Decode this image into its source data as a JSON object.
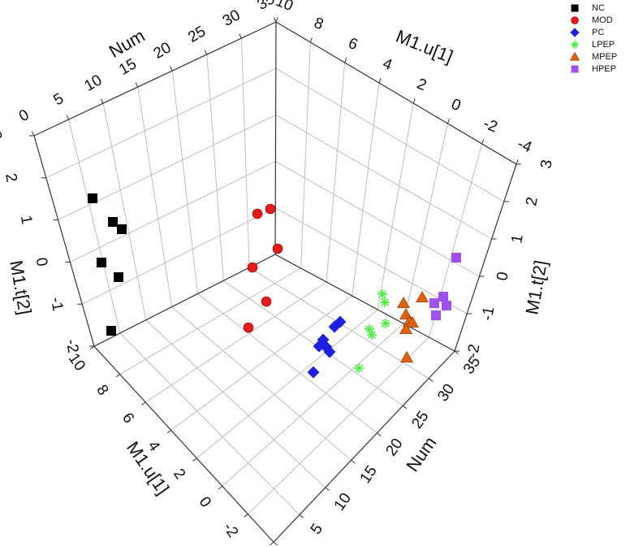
{
  "chart_data": {
    "type": "scatter",
    "view": "3d-box",
    "grid": true,
    "legend_position": "top-right",
    "axes": {
      "num_label": "Num",
      "u1_label": "M1.u[1]",
      "t2_label": "M1.t[2]",
      "num_ticks": [
        "0",
        "5",
        "10",
        "15",
        "20",
        "25",
        "30",
        "35"
      ],
      "u1_ticks": [
        "10",
        "8",
        "6",
        "4",
        "2",
        "0",
        "-2",
        "-4"
      ],
      "t2_ticks": [
        "-2",
        "-1",
        "0",
        "1",
        "2",
        "3"
      ]
    },
    "series": [
      {
        "name": "NC",
        "marker": "square",
        "color": "#000000",
        "points": [
          [
            114,
            244
          ],
          [
            139,
            273
          ],
          [
            150,
            282
          ],
          [
            125,
            323
          ],
          [
            146,
            341
          ],
          [
            137,
            407
          ]
        ]
      },
      {
        "name": "MOD",
        "marker": "circle",
        "color": "#e41a1c",
        "points": [
          [
            317,
            263
          ],
          [
            333,
            257
          ],
          [
            342,
            306
          ],
          [
            311,
            329
          ],
          [
            328,
            371
          ],
          [
            306,
            403
          ]
        ]
      },
      {
        "name": "PC",
        "marker": "diamond",
        "color": "#1f1fe0",
        "points": [
          [
            419,
            396
          ],
          [
            412,
            402
          ],
          [
            398,
            418
          ],
          [
            393,
            426
          ],
          [
            402,
            427
          ],
          [
            406,
            433
          ],
          [
            386,
            458
          ]
        ]
      },
      {
        "name": "LPEP",
        "marker": "star",
        "color": "#4cf040",
        "points": [
          [
            471,
            362
          ],
          [
            474,
            372
          ],
          [
            475,
            398
          ],
          [
            455,
            405
          ],
          [
            458,
            412
          ],
          [
            442,
            453
          ]
        ]
      },
      {
        "name": "MPEP",
        "marker": "triangle",
        "color": "#e06010",
        "points": [
          [
            520,
            366
          ],
          [
            497,
            373
          ],
          [
            500,
            387
          ],
          [
            504,
            396
          ],
          [
            508,
            397
          ],
          [
            500,
            405
          ],
          [
            501,
            440
          ]
        ]
      },
      {
        "name": "HPEP",
        "marker": "square",
        "color": "#a050f0",
        "points": [
          [
            562,
            317
          ],
          [
            546,
            365
          ],
          [
            535,
            373
          ],
          [
            550,
            376
          ],
          [
            537,
            388
          ]
        ]
      }
    ]
  }
}
